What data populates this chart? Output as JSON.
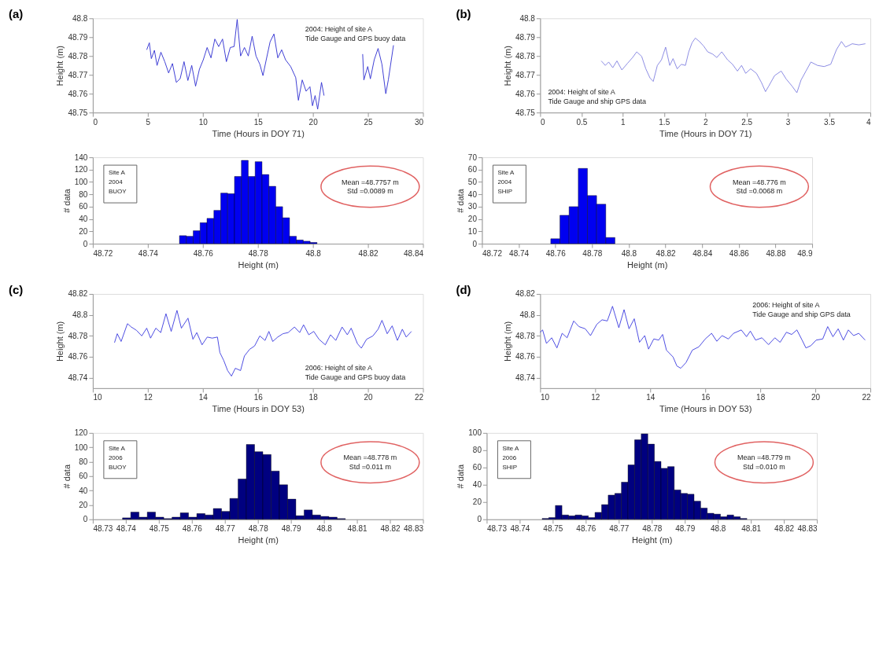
{
  "chart_data": [
    {
      "type": "line",
      "title": "(a)",
      "xlabel": "Time (Hours in DOY 71)",
      "ylabel": "Height (m)",
      "color": "#2b2bd0",
      "annotations": [
        "2004: Height of site A",
        "Tide Gauge and GPS buoy data"
      ],
      "xlim": [
        0,
        30
      ],
      "xticks": [
        0,
        5,
        10,
        15,
        20,
        25,
        30
      ],
      "ylim": [
        48.75,
        48.8
      ],
      "yticks": [
        48.75,
        48.76,
        48.77,
        48.78,
        48.79,
        48.8
      ],
      "x": [
        4.9,
        5.14,
        5.32,
        5.6,
        5.84,
        6.19,
        6.54,
        6.89,
        7.24,
        7.59,
        7.94,
        8.29,
        8.64,
        8.99,
        9.34,
        9.69,
        10.04,
        10.39,
        10.74,
        11.09,
        11.44,
        11.79,
        12.14,
        12.49,
        12.84,
        13.12,
        13.43,
        13.78,
        14.13,
        14.48,
        14.83,
        15.18,
        15.46,
        15.76,
        16.11,
        16.46,
        16.81,
        17.16,
        17.51,
        17.98,
        18.44,
        18.68,
        19.03,
        19.38,
        19.73,
        19.96,
        20.2,
        20.43,
        20.78,
        21.01,
        22.8,
        24.52,
        24.63,
        24.98,
        25.22,
        25.57,
        25.92,
        26.27,
        26.62,
        26.85,
        27.32
      ],
      "values": [
        48.7833,
        48.787,
        48.7786,
        48.783,
        48.775,
        48.782,
        48.777,
        48.771,
        48.776,
        48.766,
        48.768,
        48.777,
        48.767,
        48.775,
        48.764,
        48.773,
        48.778,
        48.7845,
        48.779,
        48.789,
        48.785,
        48.789,
        48.777,
        48.7845,
        48.785,
        48.7994,
        48.78,
        48.7845,
        48.78,
        48.7905,
        48.78,
        48.7756,
        48.7696,
        48.778,
        48.7875,
        48.7917,
        48.779,
        48.7833,
        48.778,
        48.7744,
        48.7685,
        48.7565,
        48.7673,
        48.7613,
        48.7637,
        48.7536,
        48.759,
        48.7518,
        48.766,
        48.759,
        null,
        48.781,
        48.7673,
        48.7744,
        48.7679,
        48.778,
        48.784,
        48.7756,
        48.76,
        48.7673,
        48.7857
      ]
    },
    {
      "type": "line",
      "title": "(b)",
      "xlabel": "Time (Hours in DOY 71)",
      "ylabel": "Height (m)",
      "color": "#8080e0",
      "annotations": [
        "2004: Height of site A",
        "Tide Gauge and ship GPS data"
      ],
      "xlim": [
        0,
        4
      ],
      "xticks": [
        0,
        0.5,
        1,
        1.5,
        2,
        2.5,
        3,
        3.5,
        4
      ],
      "ylim": [
        48.75,
        48.8
      ],
      "yticks": [
        48.75,
        48.76,
        48.77,
        48.78,
        48.79,
        48.8
      ],
      "x": [
        0.74,
        0.79,
        0.83,
        0.88,
        0.93,
        0.99,
        1.06,
        1.12,
        1.17,
        1.23,
        1.28,
        1.33,
        1.37,
        1.42,
        1.47,
        1.52,
        1.57,
        1.61,
        1.66,
        1.71,
        1.76,
        1.8,
        1.84,
        1.88,
        1.93,
        1.98,
        2.03,
        2.09,
        2.14,
        2.2,
        2.27,
        2.33,
        2.39,
        2.44,
        2.49,
        2.55,
        2.62,
        2.68,
        2.73,
        2.77,
        2.84,
        2.92,
        2.98,
        3.05,
        3.11,
        3.16,
        3.22,
        3.28,
        3.36,
        3.44,
        3.52,
        3.59,
        3.65,
        3.7,
        3.78,
        3.86,
        3.94
      ],
      "values": [
        48.7774,
        48.775,
        48.7768,
        48.7738,
        48.7774,
        48.7726,
        48.7762,
        48.7792,
        48.7822,
        48.7798,
        48.7732,
        48.7684,
        48.7665,
        48.775,
        48.778,
        48.7847,
        48.775,
        48.7786,
        48.7732,
        48.7756,
        48.775,
        48.7822,
        48.787,
        48.7895,
        48.7877,
        48.7853,
        48.7822,
        48.781,
        48.7792,
        48.7822,
        48.778,
        48.7756,
        48.772,
        48.775,
        48.7708,
        48.7732,
        48.7708,
        48.766,
        48.7611,
        48.7641,
        48.7696,
        48.772,
        48.7678,
        48.7641,
        48.7605,
        48.7672,
        48.772,
        48.7768,
        48.775,
        48.7744,
        48.7756,
        48.7834,
        48.7877,
        48.7847,
        48.7865,
        48.7859,
        48.7865
      ]
    },
    {
      "type": "histogram",
      "xlabel": "Height (m)",
      "ylabel": "# data",
      "color": "#0000f0",
      "annotations": [
        "Site A",
        "2004",
        "BUOY",
        "Mean =48.7757 m",
        "Std =0.0089 m"
      ],
      "xlim": [
        48.72,
        48.84
      ],
      "xticks": [
        48.72,
        48.74,
        48.76,
        48.78,
        48.8,
        48.82,
        48.84
      ],
      "ylim": [
        0,
        140
      ],
      "yticks": [
        0,
        20,
        40,
        60,
        80,
        100,
        120,
        140
      ],
      "bins": [
        48.7515,
        48.754,
        48.7565,
        48.759,
        48.7615,
        48.764,
        48.7665,
        48.769,
        48.7715,
        48.774,
        48.7765,
        48.779,
        48.7815,
        48.784,
        48.7865,
        48.789,
        48.7915,
        48.794,
        48.7965,
        48.799,
        48.8015
      ],
      "values": [
        13,
        12,
        21,
        34,
        41,
        54,
        82,
        81,
        109,
        135,
        109,
        133,
        112,
        93,
        60,
        42,
        12,
        6,
        4,
        2
      ]
    },
    {
      "type": "histogram",
      "xlabel": "Height (m)",
      "ylabel": "# data",
      "color": "#0000f0",
      "annotations": [
        "Site A",
        "2004",
        "SHIP",
        "Mean =48.776 m",
        "Std =0.0068 m"
      ],
      "xlim": [
        48.72,
        48.9
      ],
      "xticks": [
        48.72,
        48.74,
        48.76,
        48.78,
        48.8,
        48.82,
        48.84,
        48.86,
        48.88,
        48.9
      ],
      "ylim": [
        0,
        70
      ],
      "yticks": [
        0,
        10,
        20,
        30,
        40,
        50,
        60,
        70
      ],
      "bins": [
        48.7575,
        48.7625,
        48.7675,
        48.7725,
        48.7775,
        48.7825,
        48.7875,
        48.7925
      ],
      "values": [
        4,
        23,
        30,
        61,
        39,
        32,
        5
      ]
    },
    {
      "type": "line",
      "title": "(c)",
      "xlabel": "Time (Hours in DOY 53)",
      "ylabel": "Height (m)",
      "color": "#3a3adf",
      "annotations": [
        "2006: Height of site A",
        "Tide Gauge and GPS buoy data"
      ],
      "xlim": [
        10,
        22
      ],
      "xticks": [
        10,
        12,
        14,
        16,
        18,
        20,
        22
      ],
      "ylim": [
        48.73,
        48.82
      ],
      "yticks": [
        48.74,
        48.76,
        48.78,
        48.8,
        48.82
      ],
      "x": [
        10.79,
        10.89,
        11.03,
        11.26,
        11.4,
        11.59,
        11.78,
        11.96,
        12.1,
        12.29,
        12.47,
        12.66,
        12.85,
        13.06,
        13.22,
        13.46,
        13.64,
        13.78,
        13.97,
        14.16,
        14.34,
        14.53,
        14.62,
        14.76,
        14.9,
        15.04,
        15.18,
        15.37,
        15.51,
        15.7,
        15.88,
        16.07,
        16.26,
        16.4,
        16.54,
        16.72,
        16.91,
        17.1,
        17.33,
        17.52,
        17.66,
        17.85,
        18.03,
        18.22,
        18.45,
        18.64,
        18.83,
        19.06,
        19.25,
        19.39,
        19.62,
        19.76,
        19.95,
        20.18,
        20.37,
        20.51,
        20.7,
        20.88,
        21.07,
        21.25,
        21.39,
        21.58
      ],
      "values": [
        48.7735,
        48.782,
        48.7746,
        48.7916,
        48.7884,
        48.7852,
        48.7799,
        48.7873,
        48.7778,
        48.7873,
        48.7831,
        48.8011,
        48.7842,
        48.8043,
        48.7873,
        48.7969,
        48.7767,
        48.7831,
        48.7714,
        48.7788,
        48.7778,
        48.7788,
        48.7639,
        48.7564,
        48.7468,
        48.7415,
        48.749,
        48.7468,
        48.7607,
        48.7671,
        48.7703,
        48.7799,
        48.7756,
        48.7842,
        48.7746,
        48.7788,
        48.782,
        48.7831,
        48.7884,
        48.7831,
        48.7905,
        48.781,
        48.7842,
        48.7767,
        48.7714,
        48.781,
        48.7756,
        48.7884,
        48.781,
        48.7873,
        48.7724,
        48.7682,
        48.7767,
        48.7799,
        48.7863,
        48.7948,
        48.782,
        48.7895,
        48.7756,
        48.7863,
        48.7788,
        48.7842
      ]
    },
    {
      "type": "line",
      "title": "(d)",
      "xlabel": "Time (Hours in DOY 53)",
      "ylabel": "Height (m)",
      "color": "#3a3adf",
      "annotations": [
        "2006: Height of site A",
        "Tide Gauge and ship GPS data"
      ],
      "xlim": [
        10,
        22
      ],
      "xticks": [
        10,
        12,
        14,
        16,
        18,
        20,
        22
      ],
      "ylim": [
        48.73,
        48.82
      ],
      "yticks": [
        48.74,
        48.76,
        48.78,
        48.8,
        48.82
      ],
      "x": [
        10.0,
        10.09,
        10.23,
        10.42,
        10.61,
        10.8,
        10.98,
        11.22,
        11.41,
        11.64,
        11.83,
        12.06,
        12.25,
        12.44,
        12.63,
        12.86,
        13.05,
        13.23,
        13.42,
        13.61,
        13.8,
        13.94,
        14.13,
        14.31,
        14.45,
        14.59,
        14.83,
        14.97,
        15.11,
        15.3,
        15.53,
        15.77,
        16.0,
        16.23,
        16.42,
        16.61,
        16.84,
        17.03,
        17.31,
        17.5,
        17.64,
        17.83,
        18.06,
        18.3,
        18.53,
        18.72,
        18.95,
        19.14,
        19.33,
        19.52,
        19.66,
        19.84,
        20.03,
        20.27,
        20.45,
        20.64,
        20.83,
        21.02,
        21.2,
        21.39,
        21.58,
        21.81
      ],
      "values": [
        48.7834,
        48.7856,
        48.7727,
        48.7781,
        48.7684,
        48.7824,
        48.7781,
        48.7942,
        48.7888,
        48.7867,
        48.7802,
        48.791,
        48.7953,
        48.7942,
        48.8082,
        48.7877,
        48.805,
        48.7867,
        48.7963,
        48.7738,
        48.7802,
        48.7673,
        48.777,
        48.7759,
        48.7813,
        48.7663,
        48.7598,
        48.7512,
        48.749,
        48.7544,
        48.7663,
        48.7695,
        48.777,
        48.7824,
        48.7748,
        48.7802,
        48.777,
        48.7824,
        48.7856,
        48.7792,
        48.7845,
        48.7759,
        48.7781,
        48.7716,
        48.7781,
        48.7738,
        48.7834,
        48.7813,
        48.7856,
        48.7759,
        48.7684,
        48.7706,
        48.7759,
        48.777,
        48.7888,
        48.7791,
        48.7867,
        48.7759,
        48.7856,
        48.7802,
        48.7824,
        48.7759
      ]
    },
    {
      "type": "histogram",
      "xlabel": "Height (m)",
      "ylabel": "# data",
      "color": "#000080",
      "annotations": [
        "Site A",
        "2006",
        "BUOY",
        "Mean =48.778 m",
        "Std =0.011 m"
      ],
      "xlim": [
        48.73,
        48.83
      ],
      "xticks": [
        48.73,
        48.74,
        48.75,
        48.76,
        48.77,
        48.78,
        48.79,
        48.8,
        48.81,
        48.82,
        48.83
      ],
      "ylim": [
        0,
        120
      ],
      "yticks": [
        0,
        20,
        40,
        60,
        80,
        100,
        120
      ],
      "bins": [
        48.739,
        48.7415,
        48.744,
        48.7465,
        48.749,
        48.7515,
        48.754,
        48.7565,
        48.759,
        48.7615,
        48.764,
        48.7665,
        48.769,
        48.7715,
        48.774,
        48.7765,
        48.779,
        48.7815,
        48.784,
        48.7865,
        48.789,
        48.7915,
        48.794,
        48.7965,
        48.799,
        48.8015,
        48.804,
        48.8065
      ],
      "values": [
        2,
        10,
        3,
        10,
        3,
        1,
        3,
        9,
        3,
        8,
        6,
        15,
        11,
        29,
        56,
        104,
        94,
        90,
        67,
        48,
        28,
        5,
        13,
        6,
        4,
        3,
        1
      ]
    },
    {
      "type": "histogram",
      "xlabel": "Height (m)",
      "ylabel": "# data",
      "color": "#000080",
      "annotations": [
        "Site A",
        "2006",
        "SHIP",
        "Mean =48.779 m",
        "Std =0.010 m"
      ],
      "xlim": [
        48.73,
        48.83
      ],
      "xticks": [
        48.73,
        48.74,
        48.75,
        48.76,
        48.77,
        48.78,
        48.79,
        48.8,
        48.81,
        48.82,
        48.83
      ],
      "ylim": [
        0,
        100
      ],
      "yticks": [
        0,
        20,
        40,
        60,
        80,
        100
      ],
      "bins": [
        48.7468,
        48.7488,
        48.7508,
        48.7528,
        48.7548,
        48.7568,
        48.7588,
        48.7608,
        48.7628,
        48.7648,
        48.7668,
        48.7688,
        48.7708,
        48.7728,
        48.7748,
        48.7768,
        48.7788,
        48.7808,
        48.7828,
        48.7848,
        48.7868,
        48.7888,
        48.7908,
        48.7928,
        48.7948,
        48.7968,
        48.7988,
        48.8008,
        48.8028,
        48.8048,
        48.8068,
        48.8088
      ],
      "values": [
        1,
        2,
        16,
        5,
        4,
        5,
        4,
        2,
        8,
        17,
        28,
        30,
        43,
        63,
        92,
        99,
        87,
        67,
        59,
        61,
        34,
        30,
        29,
        21,
        13,
        7,
        6,
        3,
        5,
        3,
        1
      ]
    }
  ]
}
